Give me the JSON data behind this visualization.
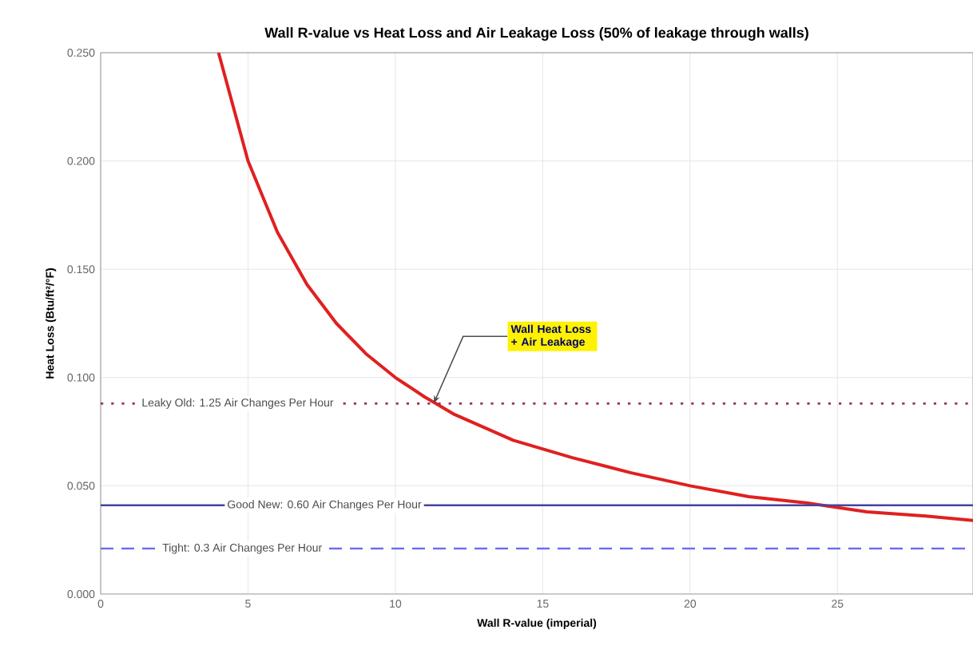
{
  "chart_data": {
    "type": "line",
    "title": "Wall R-value vs Heat Loss and Air Leakage Loss (50% of leakage through walls)",
    "xlabel": "Wall R-value (imperial)",
    "ylabel": "Heat Loss (Btu/ft²/°F)",
    "xlim": [
      0,
      29.6
    ],
    "xticks": [
      0,
      5,
      10,
      15,
      20,
      25
    ],
    "ylim": [
      0,
      0.25
    ],
    "yticks": [
      {
        "value": 0,
        "label": "0.000"
      },
      {
        "value": 0.05,
        "label": "0.050"
      },
      {
        "value": 0.1,
        "label": "0.100"
      },
      {
        "value": 0.15,
        "label": "0.150"
      },
      {
        "value": 0.2,
        "label": "0.200"
      },
      {
        "value": 0.25,
        "label": "0.250"
      }
    ],
    "grid": true,
    "marker": "none",
    "line_style": "solid",
    "series": [
      {
        "color": "#e02020",
        "x": [
          4,
          5,
          6,
          7,
          8,
          9,
          10,
          11,
          12,
          14,
          16,
          18,
          20,
          22,
          24,
          26,
          28,
          29.6
        ],
        "values": [
          0.25,
          0.2,
          0.167,
          0.143,
          0.125,
          0.111,
          0.1,
          0.091,
          0.083,
          0.071,
          0.063,
          0.056,
          0.05,
          0.045,
          0.042,
          0.038,
          0.036,
          0.034
        ]
      }
    ],
    "ref_lines": [
      {
        "axis": "y",
        "value": 0.088,
        "color": "#993355",
        "line_style": "dotted"
      },
      {
        "axis": "y",
        "value": 0.041,
        "color": "#4444a0",
        "line_style": "solid"
      },
      {
        "axis": "y",
        "value": 0.021,
        "color": "#6a6af0",
        "line_style": "dashed"
      }
    ],
    "annotations": [
      {
        "text": "Wall Heat Loss + Air Leakage",
        "x": 11.3,
        "y": 0.088
      },
      {
        "text": "Leaky Old: 1.25 Air Changes Per Hour",
        "x": 1.3,
        "y": 0.088
      },
      {
        "text": "Good New: 0.60 Air Changes Per Hour",
        "x": 4.2,
        "y": 0.041
      },
      {
        "text": "Tight: 0.3 Air Changes Per Hour",
        "x": 2.0,
        "y": 0.021
      }
    ]
  }
}
